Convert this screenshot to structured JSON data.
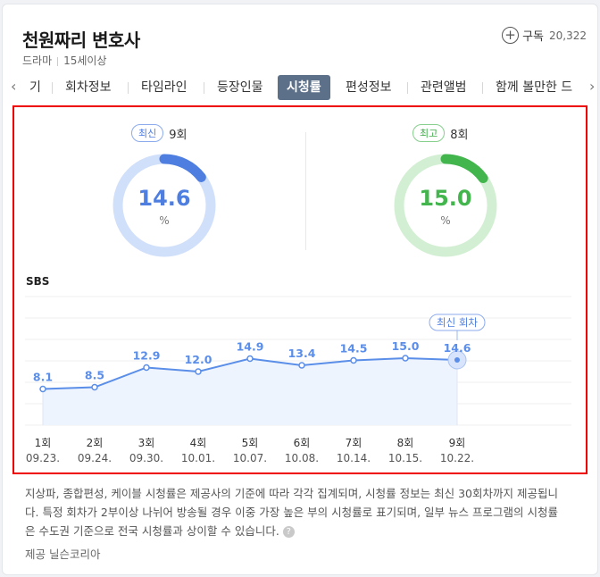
{
  "program": {
    "title": "천원짜리 변호사",
    "genre": "드라마",
    "rating": "15세이상",
    "subscribe_label": "구독",
    "subscribe_count": "20,322"
  },
  "tabs": [
    {
      "label": "기"
    },
    {
      "label": "회차정보"
    },
    {
      "label": "타임라인"
    },
    {
      "label": "등장인물"
    },
    {
      "label": "시청률",
      "active": true
    },
    {
      "label": "편성정보"
    },
    {
      "label": "관련앨범"
    },
    {
      "label": "함께 볼만한 드"
    }
  ],
  "latest": {
    "badge": "최신",
    "episode": "9회",
    "value": "14.6",
    "unit": "%",
    "fraction": 0.146,
    "color": "#4d7ee0",
    "track": "#d0dffa"
  },
  "highest": {
    "badge": "최고",
    "episode": "8회",
    "value": "15.0",
    "unit": "%",
    "fraction": 0.15,
    "color": "#42b54c",
    "track": "#d3efd3"
  },
  "chart_data": {
    "type": "area",
    "series_label": "SBS",
    "latest_marker": "최신 회차",
    "line_color": "#5a8ee8",
    "fill_color": "#eef4fe",
    "ylim": [
      0,
      30
    ],
    "points": [
      {
        "episode": "1회",
        "date": "09.23.",
        "value": 8.1
      },
      {
        "episode": "2회",
        "date": "09.24.",
        "value": 8.5
      },
      {
        "episode": "3회",
        "date": "09.30.",
        "value": 12.9
      },
      {
        "episode": "4회",
        "date": "10.01.",
        "value": 12.0
      },
      {
        "episode": "5회",
        "date": "10.07.",
        "value": 14.9
      },
      {
        "episode": "6회",
        "date": "10.08.",
        "value": 13.4
      },
      {
        "episode": "7회",
        "date": "10.14.",
        "value": 14.5
      },
      {
        "episode": "8회",
        "date": "10.15.",
        "value": 15.0
      },
      {
        "episode": "9회",
        "date": "10.22.",
        "value": 14.6
      }
    ]
  },
  "note": "지상파, 종합편성, 케이블 시청률은 제공사의 기준에 따라 각각 집계되며, 시청률 정보는 최신 30회차까지 제공됩니다. 특정 회차가 2부이상 나뉘어 방송될 경우 이중 가장 높은 부의 시청률로 표기되며, 일부 뉴스 프로그램의 시청률은 수도권 기준으로 전국 시청률과 상이할 수 있습니다.",
  "help_icon": "question-icon",
  "provider": "제공 닐슨코리아"
}
